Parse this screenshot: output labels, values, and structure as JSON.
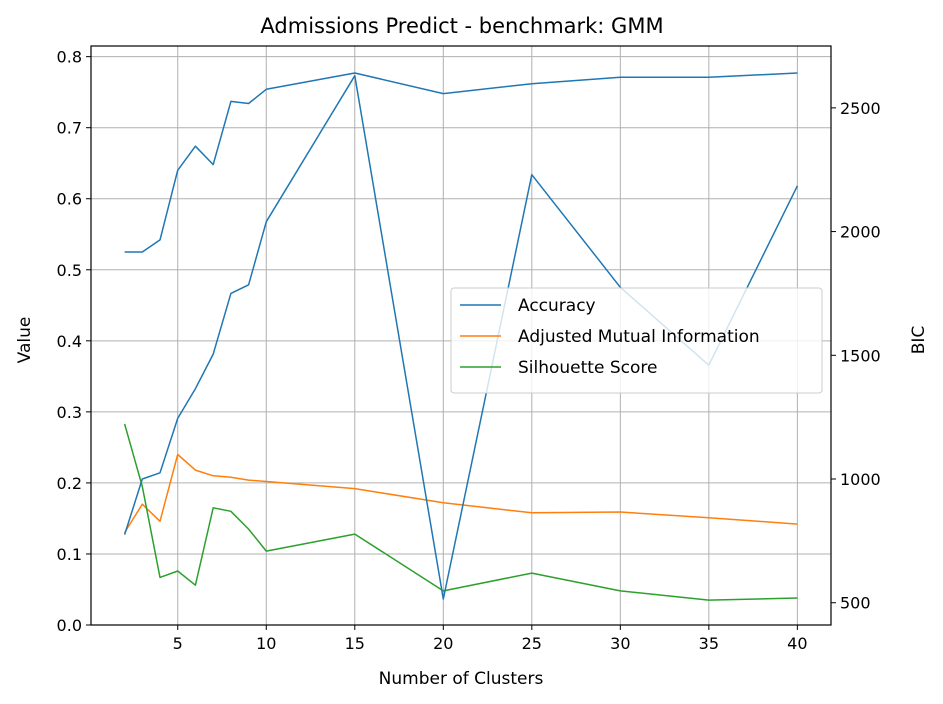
{
  "chart_data": {
    "type": "line",
    "title": "Admissions Predict - benchmark: GMM",
    "xlabel": "Number of Clusters",
    "ylabel": "Value",
    "y2label": "BIC",
    "xlim": [
      0.1,
      41.9
    ],
    "ylim": [
      0.0,
      0.815
    ],
    "y2lim": [
      410,
      2750
    ],
    "x_ticks": [
      5,
      10,
      15,
      20,
      25,
      30,
      35,
      40
    ],
    "y_ticks": [
      0.0,
      0.1,
      0.2,
      0.3,
      0.4,
      0.5,
      0.6,
      0.7,
      0.8
    ],
    "y2_ticks": [
      500,
      1000,
      1500,
      2000,
      2500
    ],
    "grid": true,
    "legend_position": "center-right",
    "x": [
      2,
      3,
      4,
      5,
      6,
      7,
      8,
      9,
      10,
      15,
      20,
      25,
      30,
      35,
      40
    ],
    "series": [
      {
        "name": "Accuracy",
        "axis": "left",
        "color": "#1f77b4",
        "values": [
          0.525,
          0.525,
          0.542,
          0.64,
          0.674,
          0.648,
          0.737,
          0.734,
          0.754,
          0.777,
          0.748,
          0.762,
          0.771,
          0.771,
          0.777
        ],
        "legend": true
      },
      {
        "name": "Adjusted Mutual Information",
        "axis": "left",
        "color": "#ff7f0e",
        "values": [
          0.13,
          0.17,
          0.146,
          0.24,
          0.218,
          0.21,
          0.208,
          0.204,
          0.202,
          0.192,
          0.172,
          0.158,
          0.159,
          0.151,
          0.142
        ],
        "legend": true
      },
      {
        "name": "Silhouette Score",
        "axis": "left",
        "color": "#2ca02c",
        "values": [
          0.283,
          0.195,
          0.067,
          0.076,
          0.056,
          0.165,
          0.16,
          0.135,
          0.104,
          0.128,
          0.048,
          0.073,
          0.048,
          0.035,
          0.038
        ],
        "legend": true
      },
      {
        "axis": "right",
        "color": "#1f77b4",
        "values": [
          775,
          1000,
          1025,
          1245,
          1365,
          1505,
          1750,
          1785,
          2040,
          2630,
          515,
          2230,
          1775,
          1460,
          2185
        ],
        "legend": false
      }
    ]
  }
}
